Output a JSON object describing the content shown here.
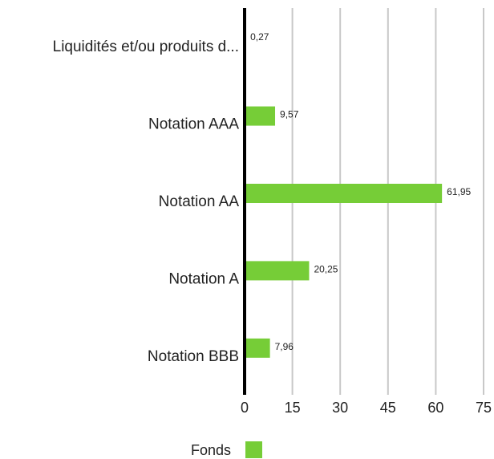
{
  "chart_data": {
    "type": "bar",
    "orientation": "horizontal",
    "categories": [
      "Liquidités et/ou produits d...",
      "Notation AAA",
      "Notation AA",
      "Notation A",
      "Notation BBB"
    ],
    "series": [
      {
        "name": "Fonds",
        "values": [
          0.27,
          9.57,
          61.95,
          20.25,
          7.96
        ],
        "color": "#76cd37"
      }
    ],
    "data_labels": [
      "0,27",
      "9,57",
      "61,95",
      "20,25",
      "7,96"
    ],
    "x_ticks": [
      "0",
      "15",
      "30",
      "45",
      "60",
      "75"
    ],
    "xlim": [
      0,
      75
    ],
    "grid": "vertical",
    "legend_position": "bottom-center",
    "title": "",
    "xlabel": "",
    "ylabel": ""
  },
  "legend": {
    "label": "Fonds"
  }
}
